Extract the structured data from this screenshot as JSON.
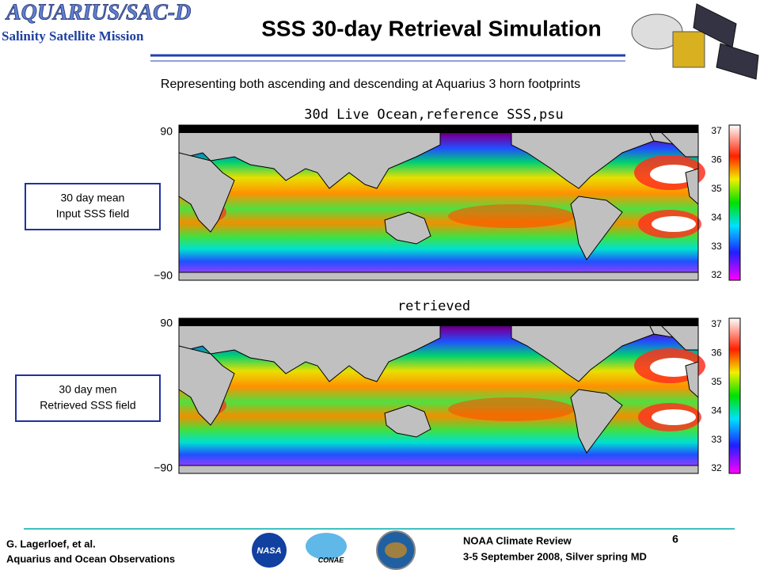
{
  "header": {
    "logo": "AQUARIUS/SAC-D",
    "mission": "Salinity Satellite Mission",
    "title": "SSS 30-day Retrieval Simulation",
    "subtitle": "Representing both ascending and descending at Aquarius 3 horn footprints"
  },
  "panels": [
    {
      "title": "30d Live Ocean,reference SSS,psu",
      "lat_labels": [
        "90",
        "−90"
      ],
      "colorbar_ticks": [
        37,
        36,
        35,
        34,
        33,
        32
      ],
      "note": [
        "30 day mean",
        "Input SSS field"
      ]
    },
    {
      "title": "retrieved",
      "lat_labels": [
        "90",
        "−90"
      ],
      "colorbar_ticks": [
        37,
        36,
        35,
        34,
        33,
        32
      ],
      "note": [
        "30 day men",
        "Retrieved SSS field"
      ]
    }
  ],
  "footer": {
    "author": "G. Lagerloef, et al.",
    "talk": "Aquarius and Ocean Observations",
    "event": "NOAA Climate Review",
    "page": 6,
    "date": "3-5 September 2008, Silver spring MD",
    "logos": [
      "NASA",
      "CONAE"
    ]
  }
}
